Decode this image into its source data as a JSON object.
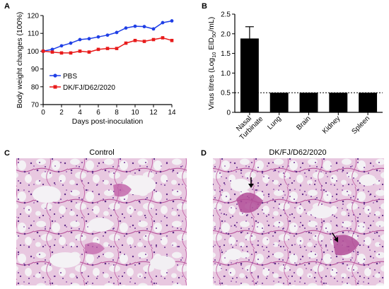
{
  "panels": {
    "A": {
      "letter": "A",
      "chart_data": {
        "type": "line",
        "x": [
          0,
          1,
          2,
          3,
          4,
          5,
          6,
          7,
          8,
          9,
          10,
          11,
          12,
          13,
          14
        ],
        "series": [
          {
            "name": "PBS",
            "color": "#1f3fe6",
            "marker": "circle",
            "values": [
              100,
              101,
              103,
              104.5,
              106.5,
              107,
              108,
              109,
              110.5,
              113,
              114,
              113.8,
              112.5,
              116,
              117
            ]
          },
          {
            "name": "DK/FJ/D62/2020",
            "color": "#e81b1b",
            "marker": "square",
            "values": [
              100,
              99.5,
              99,
              99,
              100,
              99.5,
              101,
              101.5,
              101.5,
              104.5,
              106,
              105.5,
              106.5,
              107.5,
              106
            ]
          }
        ],
        "xlabel": "Days post-inoculation",
        "ylabel": "Body weight changes (100%)",
        "xlim": [
          0,
          14
        ],
        "ylim": [
          70,
          120
        ],
        "xticks": [
          "0",
          "2",
          "4",
          "6",
          "8",
          "10",
          "12",
          "14"
        ],
        "yticks": [
          "70",
          "80",
          "90",
          "100",
          "110",
          "120"
        ],
        "legend": "lower-left"
      }
    },
    "B": {
      "letter": "B",
      "chart_data": {
        "type": "bar",
        "categories": [
          "Nasal\nTurbinate",
          "Lung",
          "Brain",
          "Kidney",
          "Spleen"
        ],
        "values": [
          1.88,
          0.5,
          0.5,
          0.5,
          0.5
        ],
        "error": [
          0.3,
          0,
          0,
          0,
          0
        ],
        "bar_color": "#000000",
        "ylabel_parts": {
          "pre": "Virus titres (Log",
          "sub1": "10",
          "mid": " EID",
          "sub2": "50",
          "post": "/mL)"
        },
        "ylim": [
          0,
          2.5
        ],
        "yticks": [
          "0",
          "0.5",
          "1.0",
          "1.5",
          "2.0",
          "2.5"
        ],
        "threshold": 0.5
      }
    },
    "C": {
      "letter": "C",
      "title": "Control"
    },
    "D": {
      "letter": "D",
      "title": "DK/FJ/D62/2020"
    }
  }
}
